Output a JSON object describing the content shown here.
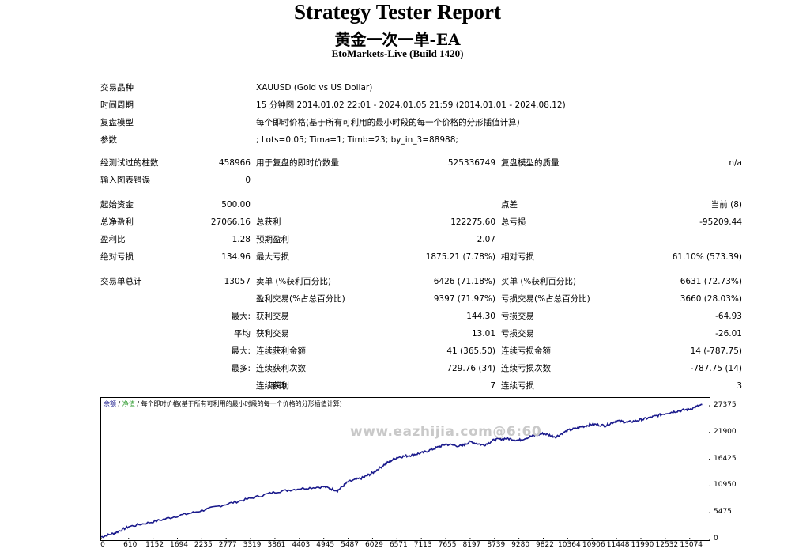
{
  "report": {
    "title": "Strategy Tester Report",
    "ea_name": "黄金一次一单-EA",
    "server": "EtoMarkets-Live (Build 1420)"
  },
  "settings": {
    "symbol_label": "交易品种",
    "symbol_value": "XAUUSD (Gold vs US Dollar)",
    "period_label": "时间周期",
    "period_value": "15 分钟图 2014.01.02 22:01 - 2024.01.05 21:59 (2014.01.01 - 2024.08.12)",
    "model_label": "复盘模型",
    "model_value": "每个即时价格(基于所有可利用的最小时段的每一个价格的分形插值计算)",
    "params_label": "参数",
    "params_value": "; Lots=0.05; Tima=1; Timb=23; by_in_3=88988;"
  },
  "stats": {
    "bars_label": "经测试过的柱数",
    "bars_value": "458966",
    "ticks_label": "用于复盘的即时价数量",
    "ticks_value": "525336749",
    "quality_label": "复盘模型的质量",
    "quality_value": "n/a",
    "errors_label": "输入图表错误",
    "errors_value": "0",
    "deposit_label": "起始资金",
    "deposit_value": "500.00",
    "spread_label": "点差",
    "spread_value": "当前 (8)",
    "net_label": "总净盈利",
    "net_value": "27066.16",
    "gross_profit_label": "总获利",
    "gross_profit_value": "122275.60",
    "gross_loss_label": "总亏损",
    "gross_loss_value": "-95209.44",
    "pf_label": "盈利比",
    "pf_value": "1.28",
    "expected_label": "预期盈利",
    "expected_value": "2.07",
    "abs_dd_label": "绝对亏损",
    "abs_dd_value": "134.96",
    "max_dd_label": "最大亏损",
    "max_dd_value": "1875.21 (7.78%)",
    "rel_dd_label": "相对亏损",
    "rel_dd_value": "61.10% (573.39)",
    "trades_label": "交易单总计",
    "trades_value": "13057",
    "short_label": "卖单 (%获利百分比)",
    "short_value": "6426 (71.18%)",
    "long_label": "买单 (%获利百分比)",
    "long_value": "6631 (72.73%)",
    "win_label": "盈利交易(%占总百分比)",
    "win_value": "9397 (71.97%)",
    "loss_label": "亏损交易(%占总百分比)",
    "loss_value": "3660 (28.03%)",
    "largest_prefix": "最大:",
    "largest_win_label": "获利交易",
    "largest_win_value": "144.30",
    "largest_loss_label": "亏损交易",
    "largest_loss_value": "-64.93",
    "avg_prefix": "平均",
    "avg_win_label": "获利交易",
    "avg_win_value": "13.01",
    "avg_loss_label": "亏损交易",
    "avg_loss_value": "-26.01",
    "max_prefix": "最大:",
    "max_cons_win_label": "连续获利金额",
    "max_cons_win_value": "41 (365.50)",
    "max_cons_loss_label": "连续亏损金额",
    "max_cons_loss_value": "14 (-787.75)",
    "most_prefix": "最多:",
    "most_cons_win_label": "连续获利次数",
    "most_cons_win_value": "729.76 (34)",
    "most_cons_loss_label": "连续亏损次数",
    "most_cons_loss_value": "-787.75 (14)",
    "avgc_prefix": "平均:",
    "avg_cons_win_label": "连续获利",
    "avg_cons_win_value": "7",
    "avg_cons_loss_label": "连续亏损",
    "avg_cons_loss_value": "3"
  },
  "chart_legend": {
    "balance": "余额",
    "sep1": " / ",
    "equity": "净值",
    "sep2": " / ",
    "model": "每个即时价格(基于所有可利用的最小时段的每一个价格的分形插值计算)"
  },
  "watermark": "www.eazhijia.com@6:60",
  "colors": {
    "balance_line": "#1a1a8c",
    "equity_legend": "#2e9b2e"
  },
  "chart_data": {
    "type": "line",
    "title": "",
    "xlabel": "",
    "ylabel": "",
    "xlim": [
      0,
      13500
    ],
    "ylim": [
      0,
      29000
    ],
    "x_ticks": [
      0,
      610,
      1152,
      1694,
      2235,
      2777,
      3319,
      3861,
      4403,
      4945,
      5487,
      6029,
      6571,
      7113,
      7655,
      8197,
      8739,
      9280,
      9822,
      10364,
      10906,
      11448,
      11990,
      12532,
      13074
    ],
    "y_ticks": [
      0,
      5475,
      10950,
      16425,
      21900,
      27375
    ],
    "series": [
      {
        "name": "余额",
        "x": [
          0,
          300,
          610,
          1152,
          1694,
          2235,
          2777,
          3319,
          3861,
          4403,
          4945,
          5250,
          5487,
          5800,
          6029,
          6300,
          6571,
          6850,
          7113,
          7400,
          7655,
          8000,
          8197,
          8500,
          8739,
          9000,
          9280,
          9550,
          9822,
          10100,
          10364,
          10650,
          10906,
          11200,
          11448,
          11700,
          11990,
          12250,
          12532,
          12800,
          13074,
          13350
        ],
        "y": [
          500,
          1300,
          2600,
          3600,
          4800,
          5900,
          7200,
          8400,
          9700,
          10400,
          10800,
          10000,
          11800,
          12600,
          13600,
          15400,
          16800,
          17200,
          17700,
          18600,
          19500,
          19100,
          20000,
          19300,
          20400,
          20700,
          20300,
          21100,
          21700,
          21000,
          22300,
          23000,
          23600,
          23300,
          24300,
          24000,
          24500,
          25100,
          25800,
          26300,
          26700,
          27600
        ]
      }
    ]
  }
}
